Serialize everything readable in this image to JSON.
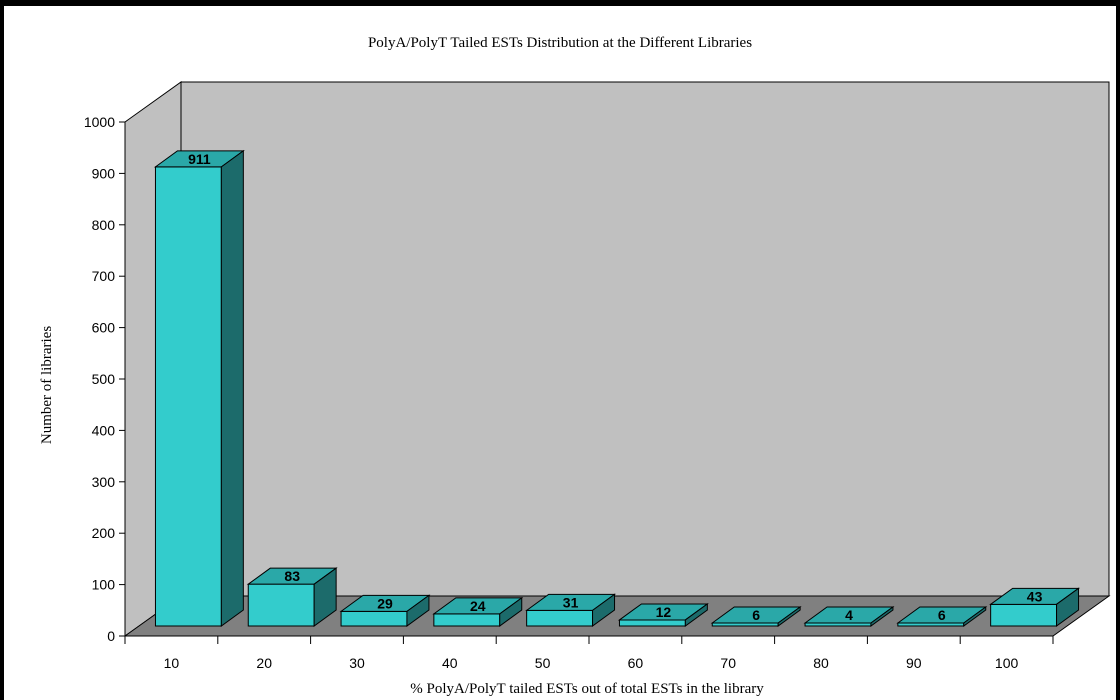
{
  "chart_data": {
    "type": "bar",
    "title": "PolyA/PolyT Tailed ESTs Distribution at the Different Libraries",
    "xlabel": "% PolyA/PolyT tailed ESTs out of total ESTs in  the library",
    "ylabel": "Number of libraries",
    "categories": [
      "10",
      "20",
      "30",
      "40",
      "50",
      "60",
      "70",
      "80",
      "90",
      "100"
    ],
    "values": [
      911,
      83,
      29,
      24,
      31,
      12,
      6,
      4,
      6,
      43
    ],
    "data_labels": [
      "911",
      "83",
      "29",
      "24",
      "31",
      "12",
      "6",
      "4",
      "6",
      "43"
    ],
    "yticks": [
      "0",
      "100",
      "200",
      "300",
      "400",
      "500",
      "600",
      "700",
      "800",
      "900",
      "1000"
    ],
    "ylim": [
      0,
      1000
    ],
    "style": "3d-column",
    "grid": false,
    "legend": "none",
    "colors": {
      "bar_front": "#33CCCC",
      "bar_top": "#2AA8A8",
      "bar_side": "#1C6B6B",
      "back_wall": "#C0C0C0",
      "floor": "#808080"
    }
  }
}
